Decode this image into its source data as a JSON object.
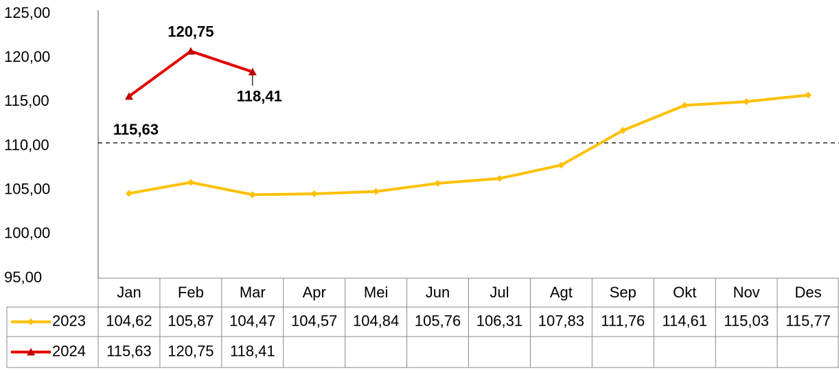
{
  "chart_data": {
    "type": "line",
    "categories": [
      "Jan",
      "Feb",
      "Mar",
      "Apr",
      "Mei",
      "Jun",
      "Jul",
      "Agt",
      "Sep",
      "Okt",
      "Nov",
      "Des"
    ],
    "series": [
      {
        "name": "2023",
        "color": "#FFC000",
        "marker": "diamond",
        "values": [
          104.62,
          105.87,
          104.47,
          104.57,
          104.84,
          105.76,
          106.31,
          107.83,
          111.76,
          114.61,
          115.03,
          115.77
        ],
        "value_labels": [
          "104,62",
          "105,87",
          "104,47",
          "104,57",
          "104,84",
          "105,76",
          "106,31",
          "107,83",
          "111,76",
          "114,61",
          "115,03",
          "115,77"
        ]
      },
      {
        "name": "2024",
        "color": "#E00000",
        "marker": "triangle",
        "values": [
          115.63,
          120.75,
          118.41,
          null,
          null,
          null,
          null,
          null,
          null,
          null,
          null,
          null
        ],
        "value_labels": [
          "115,63",
          "120,75",
          "118,41",
          null,
          null,
          null,
          null,
          null,
          null,
          null,
          null,
          null
        ]
      }
    ],
    "ylim": [
      95,
      125
    ],
    "yticks": [
      {
        "value": 95,
        "label": "95,00"
      },
      {
        "value": 100,
        "label": "100,00"
      },
      {
        "value": 105,
        "label": "105,00"
      },
      {
        "value": 110,
        "label": "110,00"
      },
      {
        "value": 115,
        "label": "115,00"
      },
      {
        "value": 120,
        "label": "120,00"
      },
      {
        "value": 125,
        "label": "125,00"
      }
    ],
    "reference_line": 110.35,
    "data_table": true
  }
}
